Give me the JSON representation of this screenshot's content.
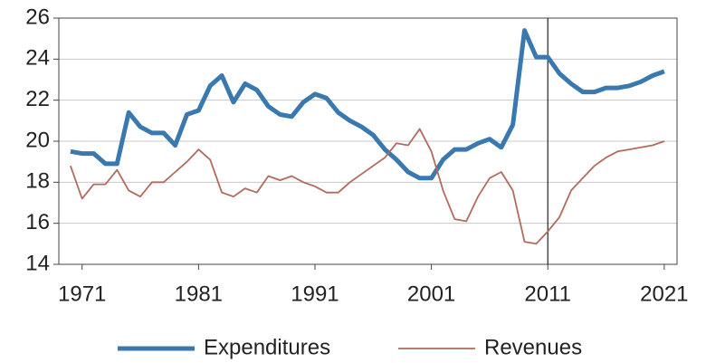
{
  "chart_data": {
    "type": "line",
    "x": [
      1970,
      1971,
      1972,
      1973,
      1974,
      1975,
      1976,
      1977,
      1978,
      1979,
      1980,
      1981,
      1982,
      1983,
      1984,
      1985,
      1986,
      1987,
      1988,
      1989,
      1990,
      1991,
      1992,
      1993,
      1994,
      1995,
      1996,
      1997,
      1998,
      1999,
      2000,
      2001,
      2002,
      2003,
      2004,
      2005,
      2006,
      2007,
      2008,
      2009,
      2010,
      2011,
      2012,
      2013,
      2014,
      2015,
      2016,
      2017,
      2018,
      2019,
      2020,
      2021
    ],
    "series": [
      {
        "name": "Expenditures",
        "color": "#3a78b0",
        "values": [
          19.5,
          19.4,
          19.4,
          18.9,
          18.9,
          21.4,
          20.7,
          20.4,
          20.4,
          19.8,
          21.3,
          21.5,
          22.7,
          23.2,
          21.9,
          22.8,
          22.5,
          21.7,
          21.3,
          21.2,
          21.9,
          22.3,
          22.1,
          21.4,
          21.0,
          20.7,
          20.3,
          19.6,
          19.1,
          18.5,
          18.2,
          18.2,
          19.1,
          19.6,
          19.6,
          19.9,
          20.1,
          19.7,
          20.8,
          25.4,
          24.1,
          24.1,
          23.3,
          22.8,
          22.4,
          22.4,
          22.6,
          22.6,
          22.7,
          22.9,
          23.2,
          23.4
        ]
      },
      {
        "name": "Revenues",
        "color": "#b36a5e",
        "values": [
          18.8,
          17.2,
          17.9,
          17.9,
          18.6,
          17.6,
          17.3,
          18.0,
          18.0,
          18.5,
          19.0,
          19.6,
          19.1,
          17.5,
          17.3,
          17.7,
          17.5,
          18.3,
          18.1,
          18.3,
          18.0,
          17.8,
          17.5,
          17.5,
          18.0,
          18.4,
          18.8,
          19.2,
          19.9,
          19.8,
          20.6,
          19.5,
          17.6,
          16.2,
          16.1,
          17.3,
          18.2,
          18.5,
          17.6,
          15.1,
          15.0,
          15.6,
          16.3,
          17.6,
          18.2,
          18.8,
          19.2,
          19.5,
          19.6,
          19.7,
          19.8,
          20.0
        ]
      }
    ],
    "xlim": [
      1969,
      2022.1
    ],
    "xticks": [
      1971,
      1981,
      1991,
      2001,
      2011,
      2021
    ],
    "ylim": [
      14,
      26
    ],
    "yticks": [
      14,
      16,
      18,
      20,
      22,
      24,
      26
    ],
    "vline": 2011,
    "grid": true,
    "legend": "bottom"
  }
}
